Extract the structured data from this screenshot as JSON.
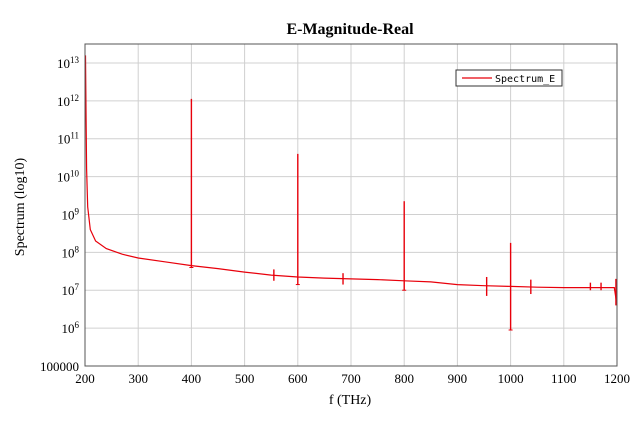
{
  "chart_data": {
    "type": "line",
    "title": "E-Magnitude-Real",
    "xlabel": "f (THz)",
    "ylabel": "Spectrum (log10)",
    "xlim": [
      200,
      1200
    ],
    "ylim_log10": [
      5,
      13.5
    ],
    "yscale": "log",
    "grid": true,
    "legend": {
      "position": "top-right",
      "entries": [
        "Spectrum_E"
      ]
    },
    "x_ticks": [
      "200",
      "300",
      "400",
      "500",
      "600",
      "700",
      "800",
      "900",
      "1000",
      "1100",
      "1200"
    ],
    "x_tick_values": [
      200,
      300,
      400,
      500,
      600,
      700,
      800,
      900,
      1000,
      1100,
      1200
    ],
    "y_ticks": [
      {
        "value": 5,
        "base": "100000",
        "exp": ""
      },
      {
        "value": 6,
        "base": "10",
        "exp": "6"
      },
      {
        "value": 7,
        "base": "10",
        "exp": "7"
      },
      {
        "value": 8,
        "base": "10",
        "exp": "8"
      },
      {
        "value": 9,
        "base": "10",
        "exp": "9"
      },
      {
        "value": 10,
        "base": "10",
        "exp": "10"
      },
      {
        "value": 11,
        "base": "10",
        "exp": "11"
      },
      {
        "value": 12,
        "base": "10",
        "exp": "12"
      },
      {
        "value": 13,
        "base": "10",
        "exp": "13"
      }
    ],
    "series": [
      {
        "name": "Spectrum_E",
        "color": "#e8000b",
        "baseline_points": [
          [
            201,
            13.2
          ],
          [
            202,
            11.5
          ],
          [
            203,
            10.2
          ],
          [
            205,
            9.2
          ],
          [
            210,
            8.6
          ],
          [
            220,
            8.3
          ],
          [
            240,
            8.1
          ],
          [
            270,
            7.95
          ],
          [
            300,
            7.85
          ],
          [
            350,
            7.75
          ],
          [
            400,
            7.65
          ],
          [
            450,
            7.57
          ],
          [
            500,
            7.48
          ],
          [
            550,
            7.4
          ],
          [
            600,
            7.35
          ],
          [
            650,
            7.32
          ],
          [
            700,
            7.3
          ],
          [
            750,
            7.28
          ],
          [
            800,
            7.25
          ],
          [
            850,
            7.22
          ],
          [
            900,
            7.15
          ],
          [
            950,
            7.12
          ],
          [
            1000,
            7.1
          ],
          [
            1050,
            7.08
          ],
          [
            1100,
            7.07
          ],
          [
            1150,
            7.07
          ],
          [
            1195,
            7.07
          ],
          [
            1200,
            6.6
          ]
        ],
        "peaks": [
          {
            "x": 400,
            "top": 12.05,
            "bottom": 7.6
          },
          {
            "x": 600,
            "top": 10.6,
            "bottom": 7.15
          },
          {
            "x": 800,
            "top": 9.35,
            "bottom": 7.0
          },
          {
            "x": 1000,
            "top": 8.25,
            "bottom": 5.95
          }
        ],
        "spikes": [
          {
            "x": 555,
            "top": 7.55,
            "bottom": 7.25
          },
          {
            "x": 685,
            "top": 7.45,
            "bottom": 7.15
          },
          {
            "x": 955,
            "top": 7.35,
            "bottom": 6.85
          },
          {
            "x": 1038,
            "top": 7.28,
            "bottom": 6.9
          },
          {
            "x": 1150,
            "top": 7.2,
            "bottom": 7.0
          },
          {
            "x": 1170,
            "top": 7.2,
            "bottom": 7.0
          },
          {
            "x": 1198,
            "top": 7.3,
            "bottom": 6.6
          }
        ]
      }
    ]
  }
}
